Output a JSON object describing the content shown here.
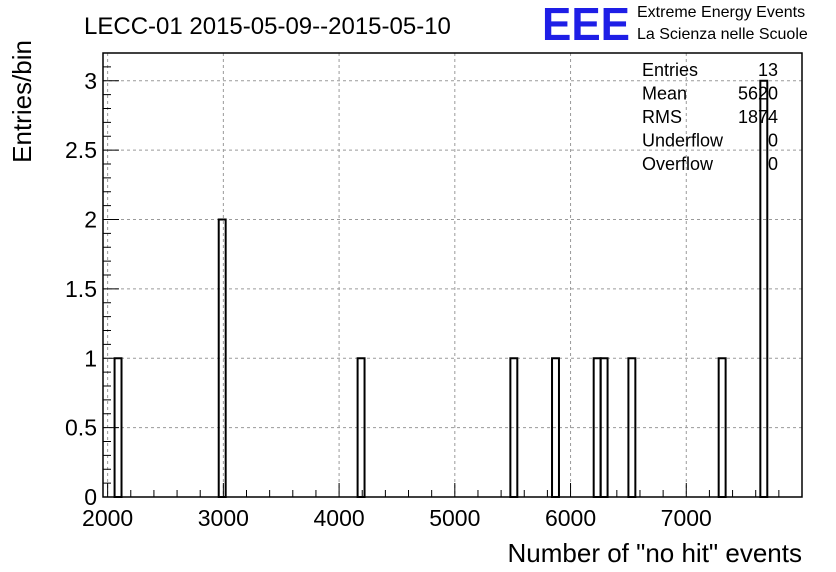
{
  "colors": {
    "background": "#ffffff",
    "frame": "#000000",
    "grid": "#9a9a9a",
    "histogram": "#000000",
    "logo": "#1e1ee6"
  },
  "logo": {
    "mark": "EEE",
    "line1": "Extreme Energy Events",
    "line2": "La Scienza nelle Scuole"
  },
  "stats": {
    "rows": [
      {
        "label": "Entries",
        "value": "13"
      },
      {
        "label": "Mean",
        "value": "5620"
      },
      {
        "label": "RMS",
        "value": "1874"
      },
      {
        "label": "Underflow",
        "value": "0"
      },
      {
        "label": "Overflow",
        "value": "0"
      }
    ]
  },
  "chart_data": {
    "type": "bar",
    "style": "step-histogram",
    "title": "LECC-01 2015-05-09--2015-05-10",
    "xlabel": "Number of \"no hit\" events",
    "ylabel": "Entries/bin",
    "xlim": [
      1960,
      8000
    ],
    "ylim": [
      0,
      3.2
    ],
    "grid": true,
    "bin_width": 60,
    "xticks": [
      2000,
      3000,
      4000,
      5000,
      6000,
      7000
    ],
    "xtick_labels": [
      "2000",
      "3000",
      "4000",
      "5000",
      "6000",
      "7000"
    ],
    "yticks": [
      0,
      0.5,
      1,
      1.5,
      2,
      2.5,
      3
    ],
    "ytick_labels": [
      "0",
      "0.5",
      "1",
      "1.5",
      "2",
      "2.5",
      "3"
    ],
    "bins": [
      {
        "x": 2060,
        "value": 1
      },
      {
        "x": 2960,
        "value": 2
      },
      {
        "x": 4160,
        "value": 1
      },
      {
        "x": 5480,
        "value": 1
      },
      {
        "x": 5840,
        "value": 1
      },
      {
        "x": 6200,
        "value": 1
      },
      {
        "x": 6260,
        "value": 1
      },
      {
        "x": 6500,
        "value": 1
      },
      {
        "x": 7280,
        "value": 1
      },
      {
        "x": 7640,
        "value": 3
      }
    ]
  }
}
